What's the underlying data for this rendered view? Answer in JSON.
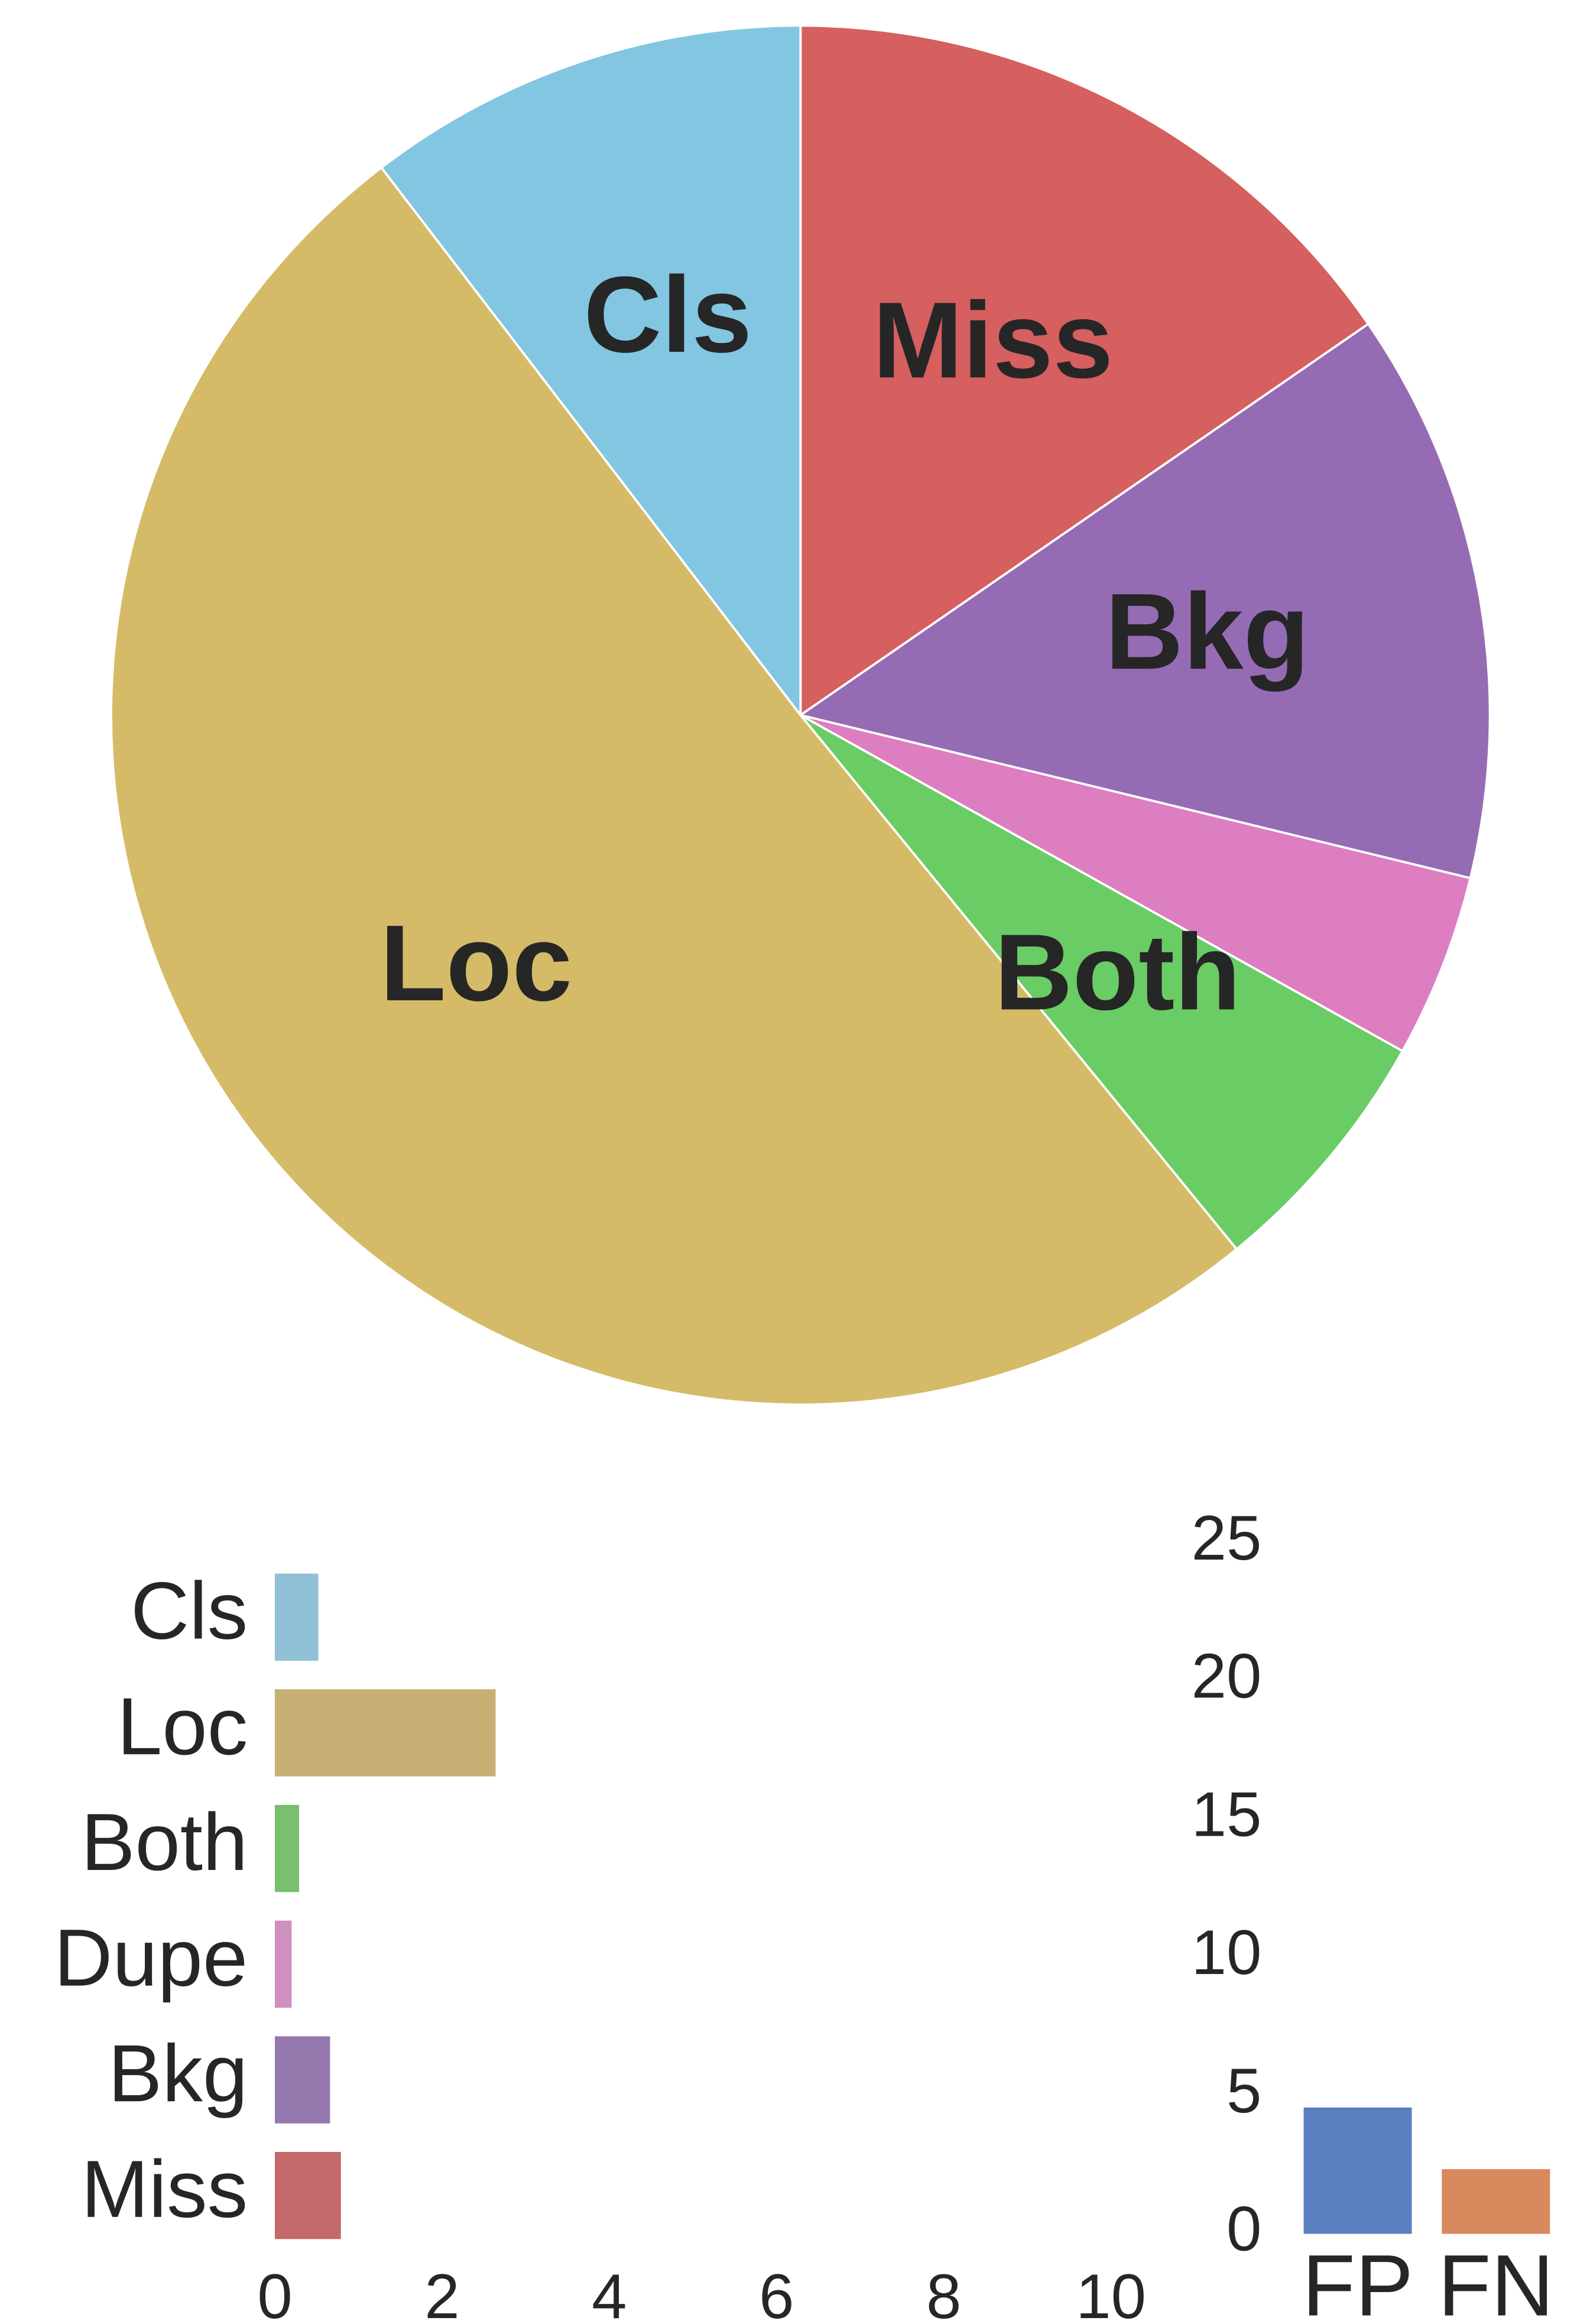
{
  "chart_data": [
    {
      "type": "pie",
      "categories": [
        "Miss",
        "Bkg",
        null,
        "Both",
        "Loc",
        "Cls"
      ],
      "values": [
        15.4,
        13.4,
        4.3,
        6.0,
        50.5,
        10.4
      ],
      "colors": [
        "#d65f5f",
        "#956cb4",
        "#dc7ec0",
        "#6acc64",
        "#d5bb67",
        "#82c6e2"
      ]
    },
    {
      "type": "hbar",
      "categories": [
        "Cls",
        "Loc",
        "Both",
        "Dupe",
        "Bkg",
        "Miss"
      ],
      "values": [
        0.52,
        2.64,
        0.29,
        0.2,
        0.66,
        0.79
      ],
      "colors": [
        "#8fc0d6",
        "#c6b074",
        "#78bf6f",
        "#cf8fbf",
        "#9478ae",
        "#c46a6a"
      ],
      "xlim": [
        0,
        10.4
      ],
      "xticks": [
        0,
        2,
        4,
        6,
        8,
        10
      ]
    },
    {
      "type": "bar",
      "categories": [
        "FP",
        "FN"
      ],
      "values": [
        4.57,
        2.34
      ],
      "colors": [
        "#5a7fc0",
        "#d8895d"
      ],
      "ylim": [
        0,
        25.5
      ],
      "yticks": [
        0,
        5,
        10,
        15,
        20,
        25
      ]
    }
  ]
}
